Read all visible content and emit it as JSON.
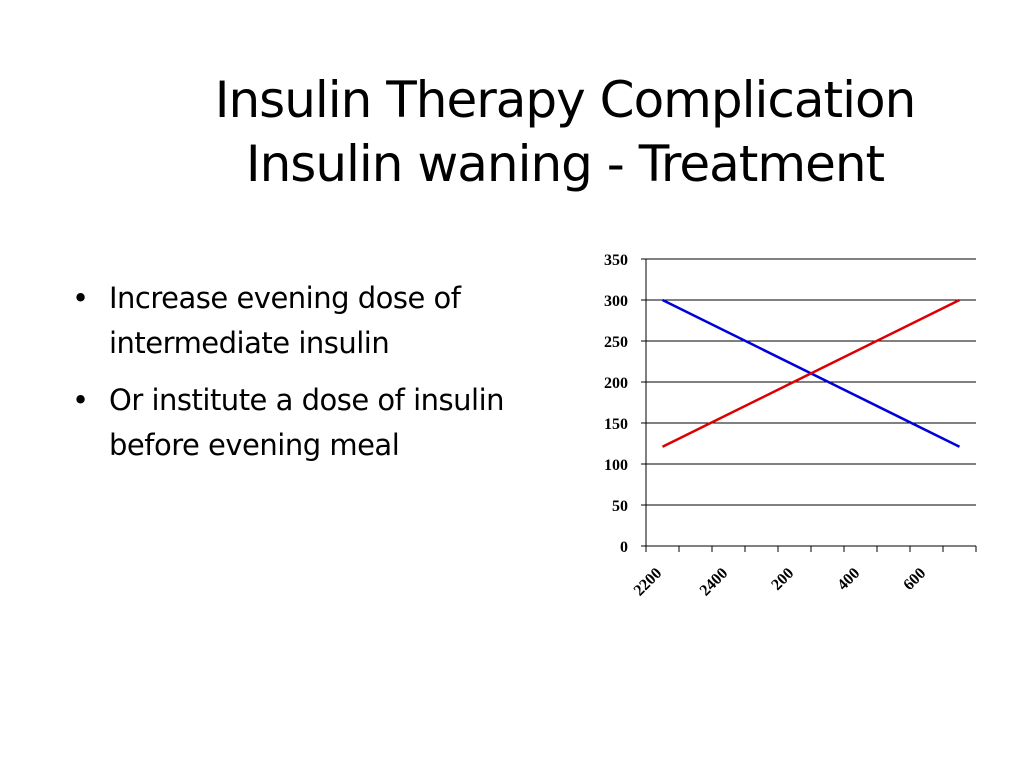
{
  "title": {
    "line1": "Insulin Therapy Complication",
    "line2": "Insulin waning - Treatment"
  },
  "bullets": [
    {
      "marker": "•",
      "text": "Increase evening dose of intermediate insulin"
    },
    {
      "marker": "•",
      "text": "Or institute a dose of insulin before evening meal"
    }
  ],
  "chart_data": {
    "type": "line",
    "title": "",
    "xlabel": "",
    "ylabel": "",
    "x": [
      "2200",
      "2400",
      "200",
      "400",
      "600"
    ],
    "x_tick_labels": [
      "2200",
      "2400",
      "200",
      "400",
      "600"
    ],
    "ylim": [
      0,
      350
    ],
    "y_ticks": [
      0,
      50,
      100,
      150,
      200,
      250,
      300,
      350
    ],
    "grid": true,
    "legend": "none",
    "series": [
      {
        "color": "#0000dd",
        "points": [
          [
            0,
            300
          ],
          [
            9,
            121
          ]
        ]
      },
      {
        "color": "#dd0000",
        "points": [
          [
            0,
            121
          ],
          [
            9,
            300
          ]
        ]
      }
    ],
    "category_slots": 10
  }
}
